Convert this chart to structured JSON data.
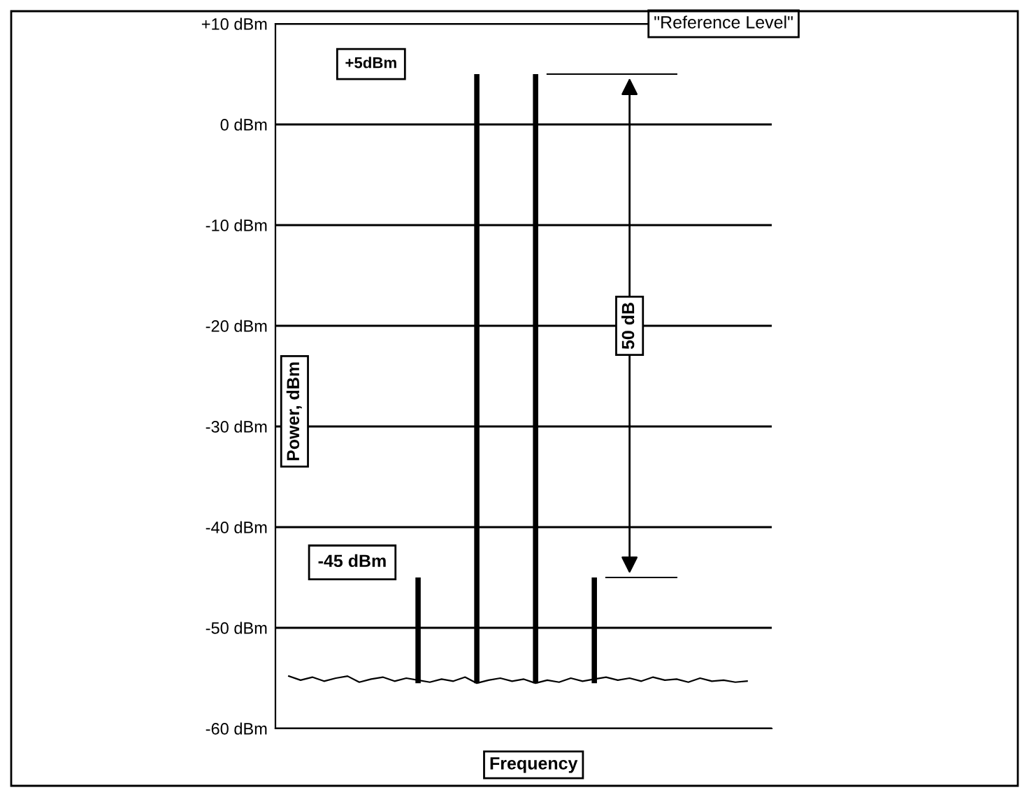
{
  "chart_data": {
    "type": "bar",
    "xlabel": "Frequency",
    "ylabel": "Power, dBm",
    "categories": [
      null,
      null,
      null,
      null,
      null,
      null,
      null,
      null,
      null,
      null,
      null,
      null,
      null,
      null,
      null,
      null,
      null,
      null,
      null,
      null,
      null,
      null,
      null,
      null,
      null,
      null,
      null,
      null,
      null,
      null,
      null,
      null,
      null,
      null,
      null,
      null,
      null,
      null,
      null,
      null
    ],
    "series": [
      {
        "color": "#000000",
        "base": [
          null,
          null,
          null,
          null,
          null,
          null,
          null,
          null,
          null,
          null,
          null,
          -55.5,
          null,
          null,
          null,
          null,
          -55.5,
          null,
          null,
          null,
          null,
          -55.5,
          null,
          null,
          null,
          null,
          -55.5,
          null,
          null,
          null,
          null,
          null,
          null,
          null,
          null,
          null,
          null,
          null,
          null,
          null
        ],
        "values": [
          null,
          null,
          null,
          null,
          null,
          null,
          null,
          null,
          null,
          null,
          null,
          10.5,
          null,
          null,
          null,
          null,
          60.5,
          null,
          null,
          null,
          null,
          60.5,
          null,
          null,
          null,
          null,
          10.5,
          null,
          null,
          null,
          null,
          null,
          null,
          null,
          null,
          null,
          null,
          null,
          null,
          null
        ]
      },
      {
        "type": "line",
        "color": "#000000",
        "values": [
          -54.8,
          -55.2,
          -54.9,
          -55.3,
          -55.0,
          -54.8,
          -55.4,
          -55.1,
          -54.9,
          -55.3,
          -55.0,
          -55.2,
          -55.4,
          -55.1,
          -55.3,
          -54.9,
          -55.5,
          -55.2,
          -55.0,
          -55.3,
          -55.1,
          -55.5,
          -55.2,
          -55.4,
          -55.0,
          -55.3,
          -55.1,
          -54.9,
          -55.2,
          -55.0,
          -55.3,
          -54.9,
          -55.2,
          -55.1,
          -55.4,
          -55.0,
          -55.3,
          -55.2,
          -55.4,
          -55.3
        ]
      }
    ],
    "ylim": [
      -60,
      10
    ],
    "yticks": [
      {
        "value": 10,
        "label": "+10 dBm"
      },
      {
        "value": 0,
        "label": "0 dBm"
      },
      {
        "value": -10,
        "label": "-10 dBm"
      },
      {
        "value": -20,
        "label": "-20 dBm"
      },
      {
        "value": -30,
        "label": "-30 dBm"
      },
      {
        "value": -40,
        "label": "-40 dBm"
      },
      {
        "value": -50,
        "label": "-50 dBm"
      },
      {
        "value": -60,
        "label": "-60 dBm"
      }
    ],
    "grid": "y",
    "annotations": [
      "+5dBm",
      "-45 dBm",
      "50 dB",
      "\"Reference Level\""
    ]
  }
}
